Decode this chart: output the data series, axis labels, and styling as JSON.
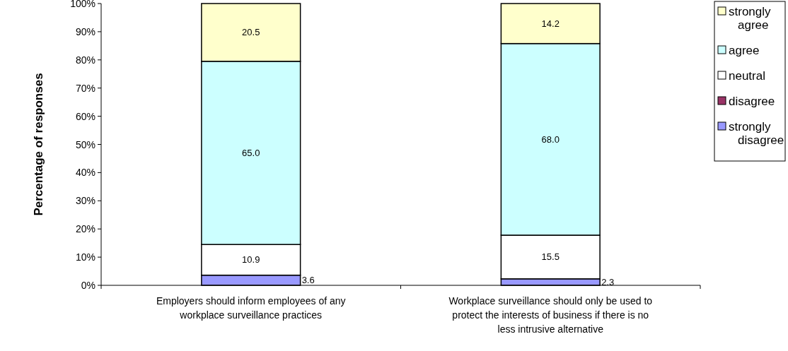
{
  "chart_data": {
    "type": "bar",
    "stacked": true,
    "ylabel": "Percentage of responses",
    "categories": [
      "Employers should inform employees of any workplace surveillance practices",
      "Workplace surveillance should only be used to protect the interests of business if there is no less intrusive alternative"
    ],
    "series": [
      {
        "name": "strongly disagree",
        "color": "#9999ff",
        "values": [
          3.6,
          2.3
        ],
        "value_labels": [
          "3.6",
          "2.3"
        ]
      },
      {
        "name": "disagree",
        "color": "#993366",
        "values": [
          0,
          0
        ],
        "value_labels": [
          null,
          null
        ]
      },
      {
        "name": "neutral",
        "color": "#ffffff",
        "values": [
          10.9,
          15.5
        ],
        "value_labels": [
          "10.9",
          "15.5"
        ]
      },
      {
        "name": "agree",
        "color": "#ccffff",
        "values": [
          65.0,
          68.0
        ],
        "value_labels": [
          "65.0",
          "68.0"
        ]
      },
      {
        "name": "strongly agree",
        "color": "#ffffcc",
        "values": [
          20.5,
          14.2
        ],
        "value_labels": [
          "20.5",
          "14.2"
        ]
      }
    ],
    "ylim": [
      0,
      100
    ],
    "yticks": [
      {
        "value": 0,
        "label": "0%"
      },
      {
        "value": 10,
        "label": "10%"
      },
      {
        "value": 20,
        "label": "20%"
      },
      {
        "value": 30,
        "label": "30%"
      },
      {
        "value": 40,
        "label": "40%"
      },
      {
        "value": 50,
        "label": "50%"
      },
      {
        "value": 60,
        "label": "60%"
      },
      {
        "value": 70,
        "label": "70%"
      },
      {
        "value": 80,
        "label": "80%"
      },
      {
        "value": 90,
        "label": "90%"
      },
      {
        "value": 100,
        "label": "100%"
      }
    ],
    "grid": false,
    "legend": "right"
  }
}
